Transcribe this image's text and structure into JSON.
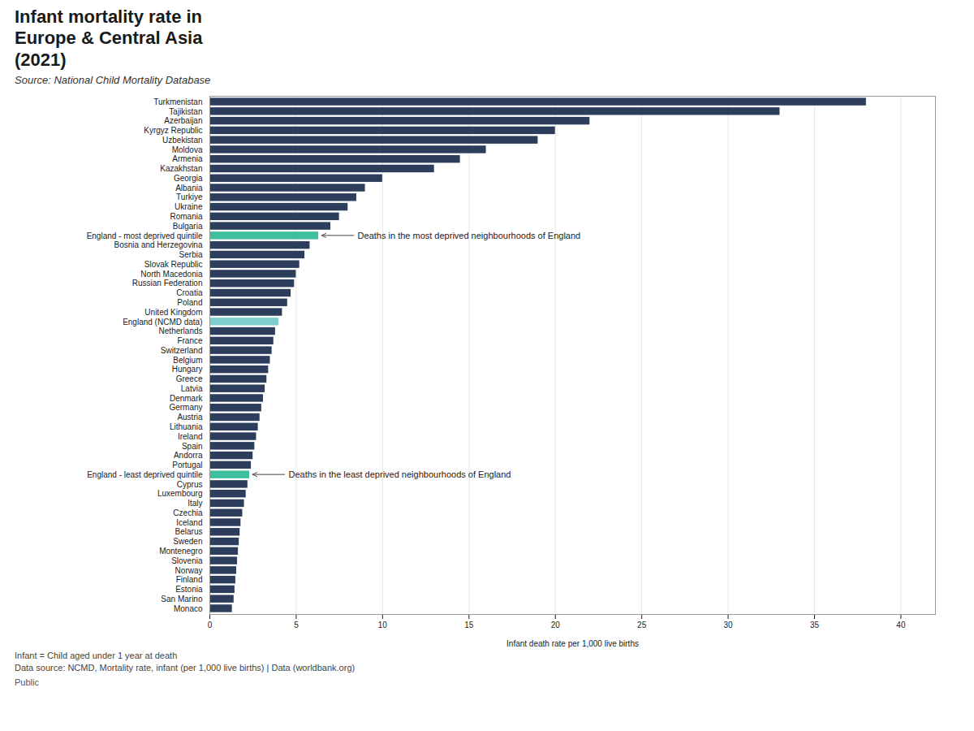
{
  "chart_data": {
    "type": "bar",
    "orientation": "horizontal",
    "title": "Infant mortality rate in\nEurope & Central Asia\n(2021)",
    "source": "Source: National Child Mortality Database",
    "xlabel": "Infant death rate per 1,000 live births",
    "footnotes": [
      "Infant = Child aged under 1 year at death",
      "Data source: NCMD, Mortality rate, infant (per 1,000 live births) | Data (worldbank.org)"
    ],
    "footer": "Public",
    "xlim": [
      0,
      42
    ],
    "xticks": [
      0,
      5,
      10,
      15,
      20,
      25,
      30,
      35,
      40
    ],
    "grid": true,
    "annotations": [
      {
        "text": "Deaths in the most deprived neighbourhoods of England",
        "category": "England - most deprived quintile"
      },
      {
        "text": "Deaths in the least deprived neighbourhoods of England",
        "category": "England - least deprived quintile"
      }
    ],
    "categories": [
      "Turkmenistan",
      "Tajikistan",
      "Azerbaijan",
      "Kyrgyz Republic",
      "Uzbekistan",
      "Moldova",
      "Armenia",
      "Kazakhstan",
      "Georgia",
      "Albania",
      "Turkiye",
      "Ukraine",
      "Romania",
      "Bulgaria",
      "England - most deprived quintile",
      "Bosnia and Herzegovina",
      "Serbia",
      "Slovak Republic",
      "North Macedonia",
      "Russian Federation",
      "Croatia",
      "Poland",
      "United Kingdom",
      "England (NCMD data)",
      "Netherlands",
      "France",
      "Switzerland",
      "Belgium",
      "Hungary",
      "Greece",
      "Latvia",
      "Denmark",
      "Germany",
      "Austria",
      "Lithuania",
      "Ireland",
      "Spain",
      "Andorra",
      "Portugal",
      "England - least deprived quintile",
      "Cyprus",
      "Luxembourg",
      "Italy",
      "Czechia",
      "Iceland",
      "Belarus",
      "Sweden",
      "Montenegro",
      "Slovenia",
      "Norway",
      "Finland",
      "Estonia",
      "San Marino",
      "Monaco"
    ],
    "values": [
      38.0,
      33.0,
      22.0,
      20.0,
      19.0,
      16.0,
      14.5,
      13.0,
      10.0,
      9.0,
      8.5,
      8.0,
      7.5,
      7.0,
      6.3,
      5.8,
      5.5,
      5.2,
      5.0,
      4.9,
      4.7,
      4.5,
      4.2,
      4.0,
      3.8,
      3.7,
      3.6,
      3.5,
      3.4,
      3.3,
      3.2,
      3.1,
      3.0,
      2.9,
      2.8,
      2.7,
      2.6,
      2.5,
      2.4,
      2.3,
      2.2,
      2.1,
      2.0,
      1.9,
      1.8,
      1.75,
      1.7,
      1.65,
      1.6,
      1.55,
      1.5,
      1.45,
      1.4,
      1.3
    ],
    "colors": [
      "#2c3e5c",
      "#2c3e5c",
      "#2c3e5c",
      "#2c3e5c",
      "#2c3e5c",
      "#2c3e5c",
      "#2c3e5c",
      "#2c3e5c",
      "#2c3e5c",
      "#2c3e5c",
      "#2c3e5c",
      "#2c3e5c",
      "#2c3e5c",
      "#2c3e5c",
      "#3dbf9e",
      "#2c3e5c",
      "#2c3e5c",
      "#2c3e5c",
      "#2c3e5c",
      "#2c3e5c",
      "#2c3e5c",
      "#2c3e5c",
      "#2c3e5c",
      "#7ecece",
      "#2c3e5c",
      "#2c3e5c",
      "#2c3e5c",
      "#2c3e5c",
      "#2c3e5c",
      "#2c3e5c",
      "#2c3e5c",
      "#2c3e5c",
      "#2c3e5c",
      "#2c3e5c",
      "#2c3e5c",
      "#2c3e5c",
      "#2c3e5c",
      "#2c3e5c",
      "#2c3e5c",
      "#3dbf9e",
      "#2c3e5c",
      "#2c3e5c",
      "#2c3e5c",
      "#2c3e5c",
      "#2c3e5c",
      "#2c3e5c",
      "#2c3e5c",
      "#2c3e5c",
      "#2c3e5c",
      "#2c3e5c",
      "#2c3e5c",
      "#2c3e5c",
      "#2c3e5c",
      "#2c3e5c"
    ]
  }
}
